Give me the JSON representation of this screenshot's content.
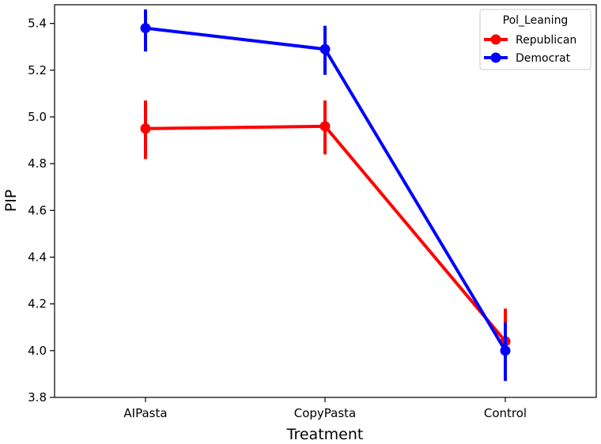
{
  "chart_data": {
    "type": "line",
    "title": "",
    "xlabel": "Treatment",
    "ylabel": "PIP",
    "categories": [
      "AIPasta",
      "CopyPasta",
      "Control"
    ],
    "ylim": [
      3.8,
      5.48
    ],
    "yticks": [
      "3.8",
      "4.0",
      "4.2",
      "4.4",
      "4.6",
      "4.8",
      "5.0",
      "5.2",
      "5.4"
    ],
    "grid": false,
    "legend": {
      "title": "Pol_Leaning",
      "placement": "top-right"
    },
    "series": [
      {
        "name": "Republican",
        "color": "#ff0000",
        "values": [
          4.95,
          4.96,
          4.04
        ],
        "err_low": [
          4.82,
          4.84,
          3.9
        ],
        "err_high": [
          5.07,
          5.07,
          4.18
        ]
      },
      {
        "name": "Democrat",
        "color": "#0000ff",
        "values": [
          5.38,
          5.29,
          4.0
        ],
        "err_low": [
          5.28,
          5.18,
          3.87
        ],
        "err_high": [
          5.46,
          5.39,
          4.12
        ]
      }
    ]
  }
}
